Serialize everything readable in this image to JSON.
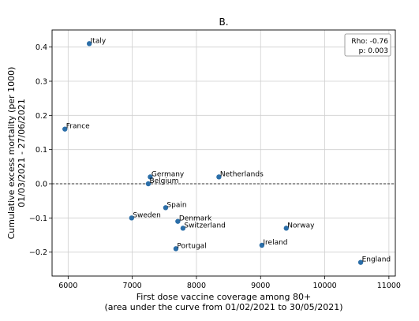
{
  "chart_data": {
    "type": "scatter",
    "title": "B.",
    "xlabel_line1": "First dose vaccine coverage among 80+",
    "xlabel_line2": "(area under the curve from 01/02/2021 to 30/05/2021)",
    "ylabel_line1": "Cumulative excess mortality (per 1000)",
    "ylabel_line2": "01/03/2021 - 27/06/2021",
    "xlim": [
      5750,
      11100
    ],
    "ylim": [
      -0.27,
      0.45
    ],
    "xticks": [
      6000,
      7000,
      8000,
      9000,
      10000,
      11000
    ],
    "yticks": [
      -0.2,
      -0.1,
      0.0,
      0.1,
      0.2,
      0.3,
      0.4
    ],
    "ytick_labels": [
      "−0.2",
      "−0.1",
      "0.0",
      "0.1",
      "0.2",
      "0.3",
      "0.4"
    ],
    "grid": true,
    "reference_line_y": 0,
    "point_color": "#2b6ea8",
    "points": [
      {
        "label": "Italy",
        "x": 6330,
        "y": 0.41
      },
      {
        "label": "France",
        "x": 5950,
        "y": 0.16
      },
      {
        "label": "Germany",
        "x": 7280,
        "y": 0.02
      },
      {
        "label": "Belgium",
        "x": 7250,
        "y": 0.0
      },
      {
        "label": "Netherlands",
        "x": 8350,
        "y": 0.02
      },
      {
        "label": "Spain",
        "x": 7520,
        "y": -0.07
      },
      {
        "label": "Sweden",
        "x": 6990,
        "y": -0.1
      },
      {
        "label": "Denmark",
        "x": 7710,
        "y": -0.11
      },
      {
        "label": "Switzerland",
        "x": 7790,
        "y": -0.13
      },
      {
        "label": "Norway",
        "x": 9400,
        "y": -0.13
      },
      {
        "label": "Ireland",
        "x": 9020,
        "y": -0.18
      },
      {
        "label": "Portugal",
        "x": 7680,
        "y": -0.19
      },
      {
        "label": "England",
        "x": 10560,
        "y": -0.23
      }
    ],
    "stats": {
      "rho": "Rho: -0.76",
      "p": "p: 0.003"
    }
  }
}
